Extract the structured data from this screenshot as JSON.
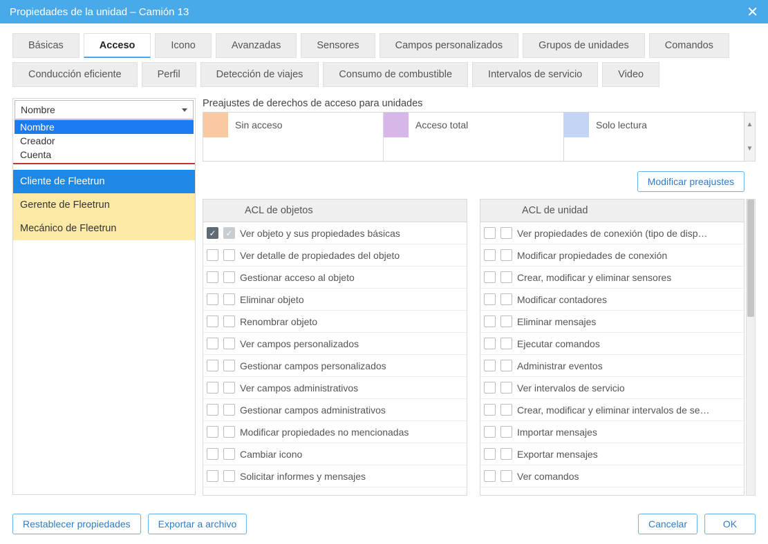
{
  "header": {
    "title": "Propiedades de la unidad – Camión 13"
  },
  "tabs": {
    "row1": [
      "Básicas",
      "Acceso",
      "Icono",
      "Avanzadas",
      "Sensores",
      "Campos personalizados",
      "Grupos de unidades",
      "Comandos"
    ],
    "row2": [
      "Conducción eficiente",
      "Perfil",
      "Detección de viajes",
      "Consumo de combustible",
      "Intervalos de servicio",
      "Video"
    ],
    "activeIndex": 1
  },
  "selector": {
    "value": "Nombre",
    "options": [
      "Nombre",
      "Creador",
      "Cuenta"
    ],
    "selectedOption": 0
  },
  "users": [
    {
      "label": "Cliente de Fleetrun",
      "state": "selected"
    },
    {
      "label": "Gerente de Fleetrun",
      "state": "hl"
    },
    {
      "label": "Mecánico de Fleetrun",
      "state": "hl"
    }
  ],
  "presets": {
    "title": "Preajustes de derechos de acceso para unidades",
    "items": [
      {
        "label": "Sin acceso",
        "color": "#f9c9a2"
      },
      {
        "label": "Acceso total",
        "color": "#d6b7e8"
      },
      {
        "label": "Solo lectura",
        "color": "#c3d4f4"
      }
    ],
    "modify": "Modificar preajustes"
  },
  "acl": {
    "object": {
      "header": "ACL de objetos",
      "rows": [
        {
          "c1": true,
          "c2": "light",
          "label": "Ver objeto y sus propiedades básicas"
        },
        {
          "c1": false,
          "c2": false,
          "label": "Ver detalle de propiedades del objeto"
        },
        {
          "c1": false,
          "c2": false,
          "label": "Gestionar acceso al objeto"
        },
        {
          "c1": false,
          "c2": false,
          "label": "Eliminar objeto"
        },
        {
          "c1": false,
          "c2": false,
          "label": "Renombrar objeto"
        },
        {
          "c1": false,
          "c2": false,
          "label": "Ver campos personalizados"
        },
        {
          "c1": false,
          "c2": false,
          "label": "Gestionar campos personalizados"
        },
        {
          "c1": false,
          "c2": false,
          "label": "Ver campos administrativos"
        },
        {
          "c1": false,
          "c2": false,
          "label": "Gestionar campos administrativos"
        },
        {
          "c1": false,
          "c2": false,
          "label": "Modificar propiedades no mencionadas"
        },
        {
          "c1": false,
          "c2": false,
          "label": "Cambiar icono"
        },
        {
          "c1": false,
          "c2": false,
          "label": "Solicitar informes y mensajes"
        }
      ]
    },
    "unit": {
      "header": "ACL de unidad",
      "rows": [
        {
          "c1": false,
          "c2": false,
          "label": "Ver propiedades de conexión (tipo de disp…"
        },
        {
          "c1": false,
          "c2": false,
          "label": "Modificar propiedades de conexión"
        },
        {
          "c1": false,
          "c2": false,
          "label": "Crear, modificar y eliminar sensores"
        },
        {
          "c1": false,
          "c2": false,
          "label": "Modificar contadores"
        },
        {
          "c1": false,
          "c2": false,
          "label": "Eliminar mensajes"
        },
        {
          "c1": false,
          "c2": false,
          "label": "Ejecutar comandos"
        },
        {
          "c1": false,
          "c2": false,
          "label": "Administrar eventos"
        },
        {
          "c1": false,
          "c2": false,
          "label": "Ver intervalos de servicio"
        },
        {
          "c1": false,
          "c2": false,
          "label": "Crear, modificar y eliminar intervalos de se…"
        },
        {
          "c1": false,
          "c2": false,
          "label": "Importar mensajes"
        },
        {
          "c1": false,
          "c2": false,
          "label": "Exportar mensajes"
        },
        {
          "c1": false,
          "c2": false,
          "label": "Ver comandos"
        }
      ]
    }
  },
  "footer": {
    "reset": "Restablecer propiedades",
    "export": "Exportar a archivo",
    "cancel": "Cancelar",
    "ok": "OK"
  }
}
